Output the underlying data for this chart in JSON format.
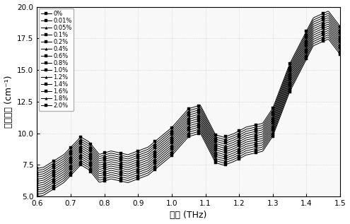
{
  "concentrations": [
    "0%",
    "0.01%",
    "0.05%",
    "0.1%",
    "0.2%",
    "0.4%",
    "0.6%",
    "0.8%",
    "1.0%",
    "1.2%",
    "1.4%",
    "1.6%",
    "1.8%",
    "2.0%"
  ],
  "xlabel": "频率 (THz)",
  "ylabel": "吸收系数 (cm⁻¹)",
  "xlim": [
    0.6,
    1.5
  ],
  "ylim": [
    5.0,
    20.0
  ],
  "yticks": [
    5.0,
    7.5,
    10.0,
    12.5,
    15.0,
    17.5,
    20.0
  ],
  "xticks": [
    0.6,
    0.7,
    0.8,
    0.9,
    1.0,
    1.1,
    1.2,
    1.3,
    1.4,
    1.5
  ],
  "base_offsets": [
    0.0,
    0.17,
    0.34,
    0.51,
    0.68,
    0.85,
    1.02,
    1.19,
    1.36,
    1.53,
    1.7,
    1.87,
    2.04,
    2.21
  ],
  "line_color": "black",
  "marker_size": 2.5,
  "linewidth": 0.7,
  "figsize": [
    4.95,
    3.17
  ],
  "dpi": 100,
  "legend_fontsize": 6.0,
  "axis_fontsize": 9,
  "tick_fontsize": 7.5
}
